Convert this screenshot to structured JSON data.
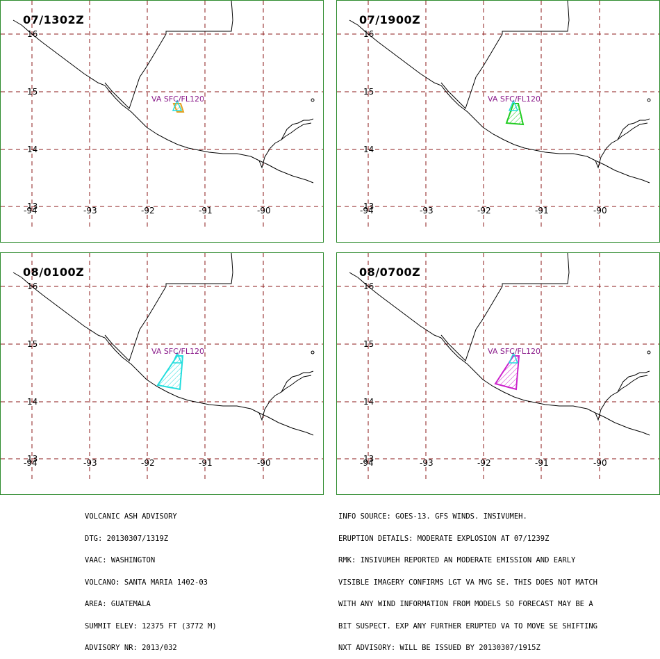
{
  "panels": [
    {
      "time": "07/1302Z",
      "label": "VA SFC/FL120",
      "ash": "tiny",
      "color": "#e0a020"
    },
    {
      "time": "07/1900Z",
      "label": "VA SFC/FL120",
      "ash": "small",
      "color": "#22cc22"
    },
    {
      "time": "08/0100Z",
      "label": "VA SFC/FL120",
      "ash": "large",
      "color": "#22dddd"
    },
    {
      "time": "08/0700Z",
      "label": "VA SFC/FL120",
      "ash": "medium",
      "color": "#cc22cc"
    }
  ],
  "grid": {
    "lat_labels": [
      "16",
      "15",
      "14",
      "13"
    ],
    "lon_labels": [
      "-94",
      "-93",
      "-92",
      "-91",
      "-90"
    ]
  },
  "advisory_left": {
    "lines": [
      "VOLCANIC ASH ADVISORY",
      "DTG: 20130307/1319Z",
      "VAAC: WASHINGTON",
      "VOLCANO: SANTA MARIA 1402-03",
      "AREA: GUATEMALA",
      "SUMMIT ELEV: 12375 FT (3772 M)",
      "ADVISORY NR: 2013/032"
    ]
  },
  "advisory_right": {
    "lines": [
      "INFO SOURCE: GOES-13. GFS WINDS. INSIVUMEH.",
      "ERUPTION DETAILS: MODERATE EXPLOSION AT 07/1239Z",
      "RMK: INSIVUMEH REPORTED AN MODERATE EMISSION AND EARLY",
      "VISIBLE IMAGERY CONFIRMS LGT VA MVG SE. THIS DOES NOT MATCH",
      "WITH ANY WIND INFORMATION FROM MODELS SO FORECAST MAY BE A",
      "BIT SUSPECT. EXP ANY FURTHER ERUPTED VA TO MOVE SE SHIFTING",
      "NXT ADVISORY: WILL BE ISSUED BY 20130307/1915Z"
    ]
  },
  "colors": {
    "panel_border": "#2c8a2c",
    "grid": "#8b1a1a",
    "coast": "#000000",
    "observed_va": "#22dddd",
    "label": "#8a1a8a"
  }
}
